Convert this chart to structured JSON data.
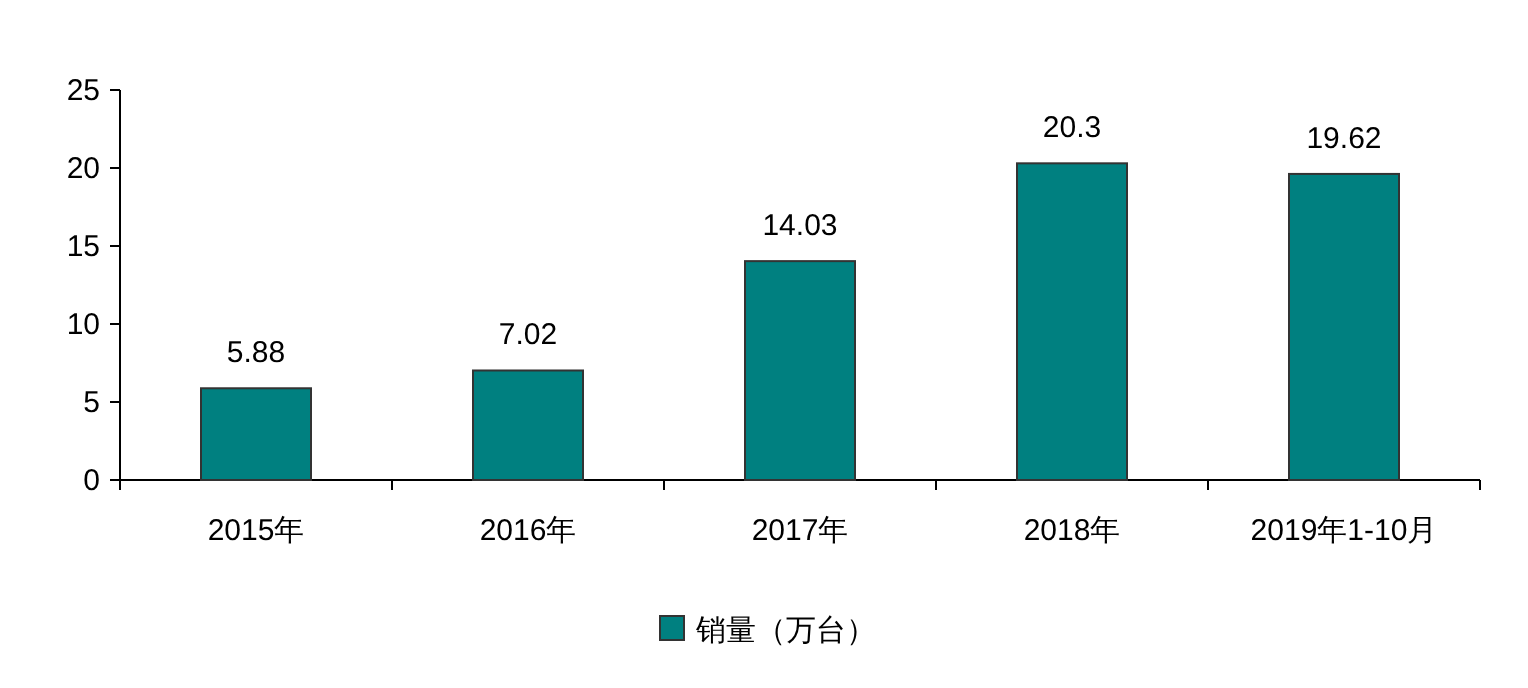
{
  "chart_data": {
    "type": "bar",
    "categories": [
      "2015年",
      "2016年",
      "2017年",
      "2018年",
      "2019年1-10月"
    ],
    "series": [
      {
        "name": "销量（万台）",
        "color": "#008080",
        "values": [
          5.88,
          7.02,
          14.03,
          20.3,
          19.62
        ]
      }
    ],
    "ylim": [
      0,
      25
    ],
    "yticks": [
      0,
      5,
      10,
      15,
      20,
      25
    ],
    "data_labels": true,
    "legend": "bottom",
    "grid": false
  }
}
